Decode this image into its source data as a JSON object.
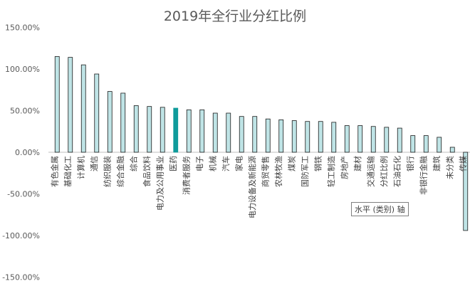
{
  "chart_data": {
    "type": "bar",
    "title": "2019年全行业分红比例",
    "categories": [
      "有色金属",
      "基础化工",
      "计算机",
      "通信",
      "纺织服装",
      "综合金融",
      "综合",
      "食品饮料",
      "电力及公用事业",
      "医药",
      "消费者服务",
      "电子",
      "机械",
      "汽车",
      "家电",
      "电力设备及新能源",
      "商贸零售",
      "农林牧渔",
      "煤炭",
      "国防军工",
      "钢铁",
      "轻工制造",
      "房地产",
      "建材",
      "交通运输",
      "分红比例",
      "石油石化",
      "银行",
      "非银行金融",
      "建筑",
      "未分类",
      "传媒"
    ],
    "values": [
      115,
      114,
      105,
      94,
      73,
      71,
      56,
      55,
      54,
      53,
      51,
      51,
      47,
      47,
      43,
      43,
      40,
      39,
      38,
      37,
      37,
      36,
      32,
      32,
      31,
      30,
      29,
      20,
      20,
      18,
      6,
      -94
    ],
    "highlight_index": 9,
    "ylim": [
      -150,
      150
    ],
    "yticks": [
      "150.00%",
      "100.00%",
      "50.00%",
      "0.00%",
      "-50.00%",
      "-100.00%",
      "-150.00%"
    ],
    "ytick_values": [
      150,
      100,
      50,
      0,
      -50,
      -100,
      -150
    ],
    "grid": false,
    "legend": "none",
    "colors": {
      "bar_fill": "#bfe4e6",
      "bar_stroke": "#1a1a1a",
      "highlight_fill": "#0f9b9b",
      "axis": "#bfbfbf"
    }
  },
  "tooltip": "水平 (类别) 轴"
}
